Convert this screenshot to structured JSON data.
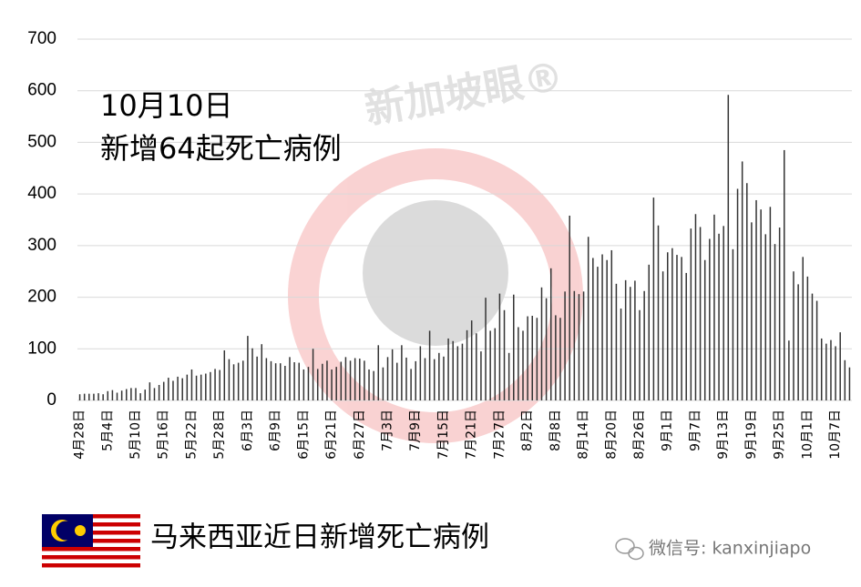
{
  "chart_data": {
    "type": "bar",
    "annotation_date": "10月10日",
    "annotation_text": "新增64起死亡病例",
    "footer_title": "马来西亚近日新增死亡病例",
    "source": "微信号: kanxinjiapo",
    "watermark": "新加坡眼®",
    "color": "#333333",
    "grid": true,
    "ylim": [
      0,
      700
    ],
    "yticks": [
      0,
      100,
      200,
      300,
      400,
      500,
      600,
      700
    ],
    "categories": [
      "4月28日",
      null,
      null,
      null,
      null,
      null,
      "5月4日",
      null,
      null,
      null,
      null,
      null,
      "5月10日",
      null,
      null,
      null,
      null,
      null,
      "5月16日",
      null,
      null,
      null,
      null,
      null,
      "5月22日",
      null,
      null,
      null,
      null,
      null,
      "5月28日",
      null,
      null,
      null,
      null,
      null,
      "6月3日",
      null,
      null,
      null,
      null,
      null,
      "6月9日",
      null,
      null,
      null,
      null,
      null,
      "6月15日",
      null,
      null,
      null,
      null,
      null,
      "6月21日",
      null,
      null,
      null,
      null,
      null,
      "6月27日",
      null,
      null,
      null,
      null,
      null,
      "7月3日",
      null,
      null,
      null,
      null,
      null,
      "7月9日",
      null,
      null,
      null,
      null,
      null,
      "7月15日",
      null,
      null,
      null,
      null,
      null,
      "7月21日",
      null,
      null,
      null,
      null,
      null,
      "7月27日",
      null,
      null,
      null,
      null,
      null,
      "8月2日",
      null,
      null,
      null,
      null,
      null,
      "8月8日",
      null,
      null,
      null,
      null,
      null,
      "8月14日",
      null,
      null,
      null,
      null,
      null,
      "8月20日",
      null,
      null,
      null,
      null,
      null,
      "8月26日",
      null,
      null,
      null,
      null,
      null,
      "9月1日",
      null,
      null,
      null,
      null,
      null,
      "9月7日",
      null,
      null,
      null,
      null,
      null,
      "9月13日",
      null,
      null,
      null,
      null,
      null,
      "9月19日",
      null,
      null,
      null,
      null,
      null,
      "9月25日",
      null,
      null,
      null,
      null,
      null,
      "10月1日",
      null,
      null,
      null,
      null,
      null,
      "10月7日",
      null,
      null,
      null
    ],
    "values": [
      12,
      13,
      13,
      13,
      14,
      12,
      18,
      20,
      15,
      19,
      22,
      24,
      24,
      14,
      21,
      35,
      24,
      30,
      36,
      44,
      38,
      46,
      43,
      50,
      60,
      48,
      50,
      52,
      55,
      61,
      59,
      97,
      80,
      70,
      73,
      77,
      125,
      101,
      85,
      109,
      82,
      76,
      72,
      72,
      67,
      84,
      74,
      73,
      60,
      65,
      100,
      61,
      71,
      77,
      60,
      65,
      75,
      84,
      77,
      82,
      81,
      77,
      60,
      57,
      107,
      64,
      84,
      99,
      73,
      107,
      83,
      61,
      76,
      105,
      82,
      135,
      80,
      92,
      85,
      120,
      115,
      105,
      110,
      136,
      155,
      130,
      95,
      199,
      135,
      140,
      207,
      175,
      92,
      205,
      142,
      135,
      163,
      164,
      160,
      219,
      198,
      256,
      165,
      160,
      211,
      358,
      212,
      206,
      211,
      317,
      276,
      259,
      283,
      272,
      291,
      226,
      178,
      233,
      220,
      232,
      175,
      212,
      263,
      393,
      339,
      250,
      287,
      295,
      282,
      278,
      247,
      333,
      361,
      336,
      272,
      313,
      360,
      323,
      338,
      592,
      293,
      410,
      463,
      421,
      345,
      388,
      370,
      322,
      375,
      303,
      335,
      485,
      116,
      250,
      225,
      278,
      240,
      207,
      193,
      120,
      110,
      117,
      105,
      132,
      78,
      64
    ]
  }
}
